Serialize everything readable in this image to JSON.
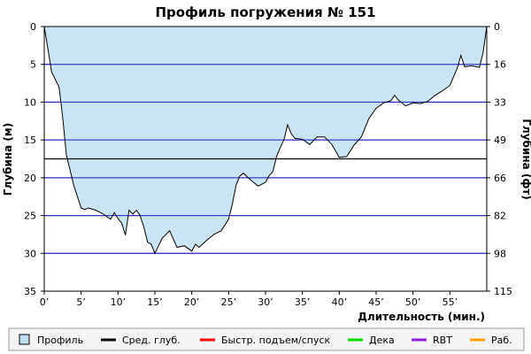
{
  "chart_data": {
    "type": "area",
    "title": "Профиль погружения № 151",
    "xlabel": "Длительность (мин.)",
    "ylabel_left": "Глубина (м)",
    "ylabel_right": "Глубина (фт)",
    "xlim": [
      0,
      60
    ],
    "ylim": [
      0,
      35
    ],
    "y_inverted": true,
    "x_ticks": [
      0,
      5,
      10,
      15,
      20,
      25,
      30,
      35,
      40,
      45,
      50,
      55
    ],
    "x_tick_labels": [
      "0’",
      "5’",
      "10’",
      "15’",
      "20’",
      "25’",
      "30’",
      "35’",
      "40’",
      "45’",
      "50’",
      "55’"
    ],
    "y_ticks_m": [
      0,
      5,
      10,
      15,
      20,
      25,
      30,
      35
    ],
    "y_ticks_ft_labels": [
      "0",
      "16",
      "33",
      "49",
      "66",
      "82",
      "98",
      "115"
    ],
    "average_depth_m": 17.5,
    "fill_color": "#c0dff0",
    "gridline_color": "#2020c0",
    "profile": [
      [
        0,
        0
      ],
      [
        0.5,
        3
      ],
      [
        1,
        6
      ],
      [
        2,
        8
      ],
      [
        2.5,
        12
      ],
      [
        3,
        17
      ],
      [
        3.5,
        19
      ],
      [
        4,
        21
      ],
      [
        5,
        24
      ],
      [
        5.5,
        24.2
      ],
      [
        6,
        24
      ],
      [
        7,
        24.3
      ],
      [
        8,
        24.8
      ],
      [
        9,
        25.5
      ],
      [
        9.5,
        24.6
      ],
      [
        10,
        25.4
      ],
      [
        10.5,
        26
      ],
      [
        11,
        27.6
      ],
      [
        11.5,
        24.3
      ],
      [
        12,
        24.8
      ],
      [
        12.5,
        24.3
      ],
      [
        13,
        25
      ],
      [
        13.5,
        26.5
      ],
      [
        14,
        28.5
      ],
      [
        14.5,
        28.8
      ],
      [
        15,
        30
      ],
      [
        15.5,
        29
      ],
      [
        16,
        28
      ],
      [
        17,
        27
      ],
      [
        18,
        29.2
      ],
      [
        19,
        29
      ],
      [
        20,
        29.7
      ],
      [
        20.5,
        28.8
      ],
      [
        21,
        29.2
      ],
      [
        22,
        28.3
      ],
      [
        23,
        27.5
      ],
      [
        24,
        27
      ],
      [
        25,
        25.5
      ],
      [
        25.5,
        23.5
      ],
      [
        26,
        21
      ],
      [
        26.5,
        19.8
      ],
      [
        27,
        19.4
      ],
      [
        28,
        20.3
      ],
      [
        29,
        21.1
      ],
      [
        30,
        20.6
      ],
      [
        30.5,
        19.7
      ],
      [
        31,
        19.2
      ],
      [
        31.5,
        17.2
      ],
      [
        32,
        16
      ],
      [
        32.5,
        15
      ],
      [
        33,
        13
      ],
      [
        33.5,
        14.2
      ],
      [
        34,
        14.8
      ],
      [
        35,
        14.9
      ],
      [
        36,
        15.6
      ],
      [
        37,
        14.6
      ],
      [
        38,
        14.6
      ],
      [
        39,
        15.6
      ],
      [
        40,
        17.3
      ],
      [
        41,
        17.2
      ],
      [
        42,
        15.7
      ],
      [
        43,
        14.6
      ],
      [
        44,
        12.2
      ],
      [
        45,
        10.8
      ],
      [
        46,
        10.1
      ],
      [
        47,
        9.8
      ],
      [
        47.5,
        9.1
      ],
      [
        48,
        9.7
      ],
      [
        49,
        10.5
      ],
      [
        50,
        10.1
      ],
      [
        51,
        10.2
      ],
      [
        52,
        9.9
      ],
      [
        53,
        9.1
      ],
      [
        54,
        8.5
      ],
      [
        55,
        7.8
      ],
      [
        56,
        5.5
      ],
      [
        56.5,
        3.8
      ],
      [
        57,
        5.3
      ],
      [
        58,
        5.2
      ],
      [
        59,
        5.4
      ],
      [
        59.5,
        3.5
      ],
      [
        60,
        0
      ]
    ],
    "legend": [
      {
        "label": "Профиль",
        "color": "#c0dff0",
        "kind": "box"
      },
      {
        "label": "Сред. глуб.",
        "color": "#000000",
        "kind": "line"
      },
      {
        "label": "Быстр. подъем/спуск",
        "color": "#ff0000",
        "kind": "line"
      },
      {
        "label": "Дека",
        "color": "#00e000",
        "kind": "line"
      },
      {
        "label": "RBT",
        "color": "#9020e0",
        "kind": "line"
      },
      {
        "label": "Раб.",
        "color": "#ffa000",
        "kind": "line"
      }
    ]
  }
}
